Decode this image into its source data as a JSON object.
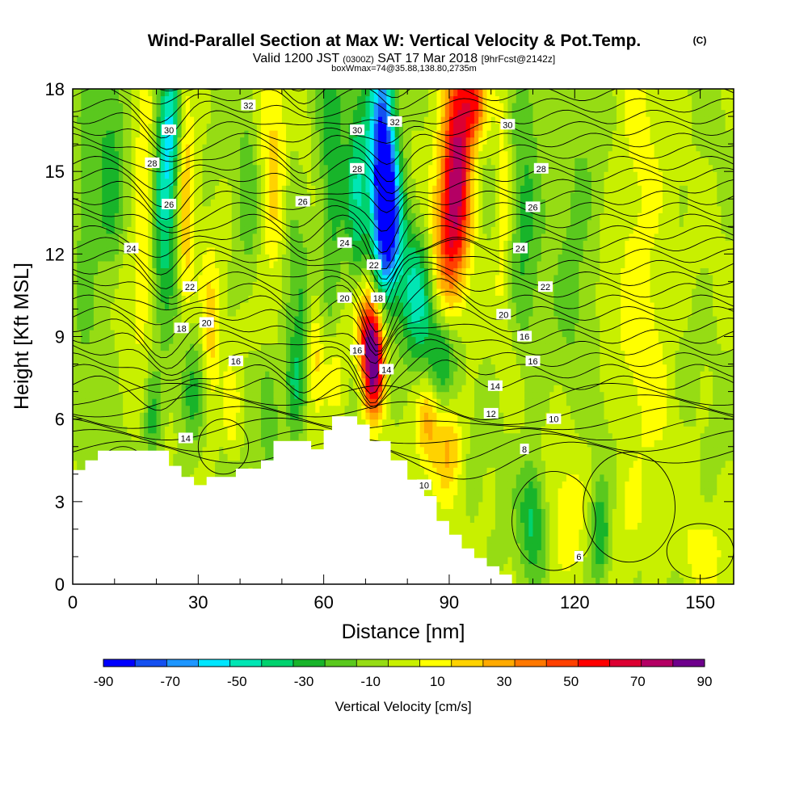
{
  "chart_data": {
    "type": "heatmap",
    "title": "Wind-Parallel Section at Max W: Vertical Velocity & Pot.Temp.",
    "title_mark": "(C)",
    "subtitle_parts": [
      "Valid 1200 JST",
      "(0300Z)",
      "SAT 17 Mar 2018",
      "[9hrFcst@2142z]"
    ],
    "subtitle2": "boxWmax=74@35.88,138.80,2735m",
    "xlabel": "Distance [nm]",
    "ylabel": "Height [Kft MSL]",
    "xlim": [
      0,
      158
    ],
    "ylim": [
      0,
      18
    ],
    "x_ticks": [
      "0",
      "30",
      "60",
      "90",
      "120",
      "150"
    ],
    "y_ticks": [
      "0",
      "3",
      "6",
      "9",
      "12",
      "15",
      "18"
    ],
    "colorbar": {
      "label": "Vertical Velocity [cm/s]",
      "tick_labels": [
        "-90",
        "-70",
        "-50",
        "-30",
        "-10",
        "10",
        "30",
        "50",
        "70",
        "90"
      ],
      "levels": [
        -90,
        -80,
        -70,
        -60,
        -50,
        -40,
        -30,
        -20,
        -10,
        0,
        10,
        20,
        30,
        40,
        50,
        60,
        70,
        80,
        90
      ],
      "colors": [
        "#0000ff",
        "#1450f0",
        "#1e96ff",
        "#00e6ff",
        "#00e6b4",
        "#00d26e",
        "#18b42a",
        "#5ac81e",
        "#96dc14",
        "#c8f000",
        "#ffff00",
        "#ffd200",
        "#ffaa00",
        "#ff7800",
        "#ff4000",
        "#ff0000",
        "#dc0032",
        "#b40064",
        "#6e008c"
      ]
    },
    "terrain": [
      [
        0,
        4.15
      ],
      [
        3,
        4.15
      ],
      [
        3,
        4.5
      ],
      [
        6,
        4.5
      ],
      [
        6,
        4.85
      ],
      [
        23,
        4.85
      ],
      [
        23,
        4.3
      ],
      [
        26,
        4.3
      ],
      [
        26,
        3.9
      ],
      [
        29,
        3.9
      ],
      [
        29,
        3.6
      ],
      [
        32,
        3.6
      ],
      [
        32,
        3.9
      ],
      [
        39,
        3.9
      ],
      [
        39,
        4.2
      ],
      [
        45,
        4.2
      ],
      [
        45,
        4.5
      ],
      [
        48,
        4.5
      ],
      [
        48,
        5.2
      ],
      [
        57,
        5.2
      ],
      [
        57,
        4.9
      ],
      [
        60,
        4.9
      ],
      [
        60,
        5.6
      ],
      [
        62,
        5.6
      ],
      [
        62,
        6.1
      ],
      [
        68,
        6.1
      ],
      [
        68,
        5.8
      ],
      [
        71,
        5.8
      ],
      [
        71,
        5.2
      ],
      [
        76,
        5.2
      ],
      [
        76,
        4.5
      ],
      [
        80,
        4.5
      ],
      [
        80,
        3.8
      ],
      [
        84,
        3.8
      ],
      [
        84,
        3.2
      ],
      [
        87,
        3.2
      ],
      [
        87,
        2.3
      ],
      [
        90,
        2.3
      ],
      [
        90,
        1.8
      ],
      [
        93,
        1.8
      ],
      [
        93,
        1.3
      ],
      [
        96,
        1.3
      ],
      [
        96,
        0.95
      ],
      [
        99,
        0.95
      ],
      [
        99,
        0.65
      ],
      [
        102,
        0.65
      ],
      [
        102,
        0.35
      ],
      [
        105,
        0.35
      ],
      [
        105,
        0.35
      ]
    ],
    "w_features": [
      {
        "x": 72,
        "y": 8.0,
        "sx": 1.7,
        "sy": 1.3,
        "w": 95
      },
      {
        "x": 70,
        "y": 9.5,
        "sx": 2.0,
        "sy": 1.2,
        "w": 50
      },
      {
        "x": 92,
        "y": 15.5,
        "sx": 2.4,
        "sy": 2.8,
        "w": 80
      },
      {
        "x": 89,
        "y": 12.5,
        "sx": 2.5,
        "sy": 2.0,
        "w": 40
      },
      {
        "x": 96,
        "y": 17.5,
        "sx": 2.0,
        "sy": 1.0,
        "w": 55
      },
      {
        "x": 74,
        "y": 15.5,
        "sx": 2.3,
        "sy": 3.0,
        "w": -88
      },
      {
        "x": 76,
        "y": 13.0,
        "sx": 2.2,
        "sy": 1.8,
        "w": -55
      },
      {
        "x": 82,
        "y": 10.5,
        "sx": 2.8,
        "sy": 1.8,
        "w": -40
      },
      {
        "x": 88,
        "y": 8.3,
        "sx": 2.8,
        "sy": 1.3,
        "w": -30
      },
      {
        "x": 85,
        "y": 6.0,
        "sx": 2.0,
        "sy": 1.2,
        "w": 32
      },
      {
        "x": 90,
        "y": 5.0,
        "sx": 2.2,
        "sy": 1.2,
        "w": 30
      },
      {
        "x": 62,
        "y": 15.0,
        "sx": 2.2,
        "sy": 4.0,
        "w": -28
      },
      {
        "x": 68,
        "y": 14.0,
        "sx": 1.8,
        "sy": 3.0,
        "w": -35
      },
      {
        "x": 23,
        "y": 16.5,
        "sx": 2.0,
        "sy": 2.0,
        "w": -50
      },
      {
        "x": 22,
        "y": 12.5,
        "sx": 2.0,
        "sy": 2.5,
        "w": -30
      },
      {
        "x": 27,
        "y": 14.0,
        "sx": 1.5,
        "sy": 4.0,
        "w": 28
      },
      {
        "x": 17,
        "y": 14.5,
        "sx": 1.5,
        "sy": 4.0,
        "w": 20
      },
      {
        "x": 9,
        "y": 15.0,
        "sx": 2.5,
        "sy": 4.0,
        "w": -22
      },
      {
        "x": 3,
        "y": 12.5,
        "sx": 2.0,
        "sy": 3.0,
        "w": -18
      },
      {
        "x": 13,
        "y": 10.5,
        "sx": 2.5,
        "sy": 1.5,
        "w": 12
      },
      {
        "x": 48,
        "y": 15.0,
        "sx": 2.5,
        "sy": 4.0,
        "w": 22
      },
      {
        "x": 42,
        "y": 14.5,
        "sx": 2.0,
        "sy": 3.0,
        "w": -15
      },
      {
        "x": 52,
        "y": 13.0,
        "sx": 1.5,
        "sy": 3.0,
        "w": -12
      },
      {
        "x": 55,
        "y": 10.5,
        "sx": 1.5,
        "sy": 1.5,
        "w": -20
      },
      {
        "x": 58,
        "y": 8.5,
        "sx": 1.5,
        "sy": 1.5,
        "w": 25
      },
      {
        "x": 53,
        "y": 7.2,
        "sx": 1.8,
        "sy": 1.5,
        "w": -28
      },
      {
        "x": 47,
        "y": 6.5,
        "sx": 1.8,
        "sy": 1.5,
        "w": -25
      },
      {
        "x": 63,
        "y": 7.5,
        "sx": 2.0,
        "sy": 1.3,
        "w": 22
      },
      {
        "x": 33,
        "y": 9.0,
        "sx": 1.7,
        "sy": 2.0,
        "w": 25
      },
      {
        "x": 28,
        "y": 7.0,
        "sx": 2.0,
        "sy": 1.5,
        "w": -28
      },
      {
        "x": 19,
        "y": 6.0,
        "sx": 1.5,
        "sy": 1.2,
        "w": -25
      },
      {
        "x": 38,
        "y": 6.3,
        "sx": 1.5,
        "sy": 1.2,
        "w": 18
      },
      {
        "x": 108,
        "y": 14.5,
        "sx": 3.0,
        "sy": 4.0,
        "w": -22
      },
      {
        "x": 103,
        "y": 14.0,
        "sx": 1.5,
        "sy": 3.0,
        "w": 22
      },
      {
        "x": 120,
        "y": 12.5,
        "sx": 3.5,
        "sy": 3.0,
        "w": -16
      },
      {
        "x": 135,
        "y": 13.5,
        "sx": 4.0,
        "sy": 4.0,
        "w": 14
      },
      {
        "x": 138,
        "y": 8.0,
        "sx": 4.0,
        "sy": 3.0,
        "w": 10
      },
      {
        "x": 110,
        "y": 2.5,
        "sx": 2.2,
        "sy": 1.5,
        "w": -32
      },
      {
        "x": 126,
        "y": 1.8,
        "sx": 1.8,
        "sy": 1.3,
        "w": -36
      },
      {
        "x": 118,
        "y": 2.5,
        "sx": 3.5,
        "sy": 1.8,
        "w": 14
      },
      {
        "x": 133,
        "y": 2.5,
        "sx": 4.0,
        "sy": 1.5,
        "w": 12
      },
      {
        "x": 150,
        "y": 1.0,
        "sx": 4.0,
        "sy": 1.0,
        "w": 14
      }
    ],
    "contour_labels": [
      {
        "text": "32",
        "x": 42,
        "y": 17.4
      },
      {
        "text": "32",
        "x": 77,
        "y": 16.8
      },
      {
        "text": "30",
        "x": 23,
        "y": 16.5
      },
      {
        "text": "30",
        "x": 68,
        "y": 16.5
      },
      {
        "text": "30",
        "x": 104,
        "y": 16.7
      },
      {
        "text": "28",
        "x": 19,
        "y": 15.3
      },
      {
        "text": "28",
        "x": 68,
        "y": 15.1
      },
      {
        "text": "28",
        "x": 112,
        "y": 15.1
      },
      {
        "text": "26",
        "x": 23,
        "y": 13.8
      },
      {
        "text": "26",
        "x": 55,
        "y": 13.9
      },
      {
        "text": "26",
        "x": 110,
        "y": 13.7
      },
      {
        "text": "24",
        "x": 14,
        "y": 12.2
      },
      {
        "text": "24",
        "x": 65,
        "y": 12.4
      },
      {
        "text": "24",
        "x": 107,
        "y": 12.2
      },
      {
        "text": "22",
        "x": 72,
        "y": 11.6
      },
      {
        "text": "22",
        "x": 28,
        "y": 10.8
      },
      {
        "text": "22",
        "x": 113,
        "y": 10.8
      },
      {
        "text": "20",
        "x": 65,
        "y": 10.4
      },
      {
        "text": "20",
        "x": 32,
        "y": 9.5
      },
      {
        "text": "20",
        "x": 103,
        "y": 9.8
      },
      {
        "text": "18",
        "x": 73,
        "y": 10.4
      },
      {
        "text": "18",
        "x": 26,
        "y": 9.3
      },
      {
        "text": "16",
        "x": 68,
        "y": 8.5
      },
      {
        "text": "16",
        "x": 108,
        "y": 9.0
      },
      {
        "text": "16",
        "x": 110,
        "y": 8.1
      },
      {
        "text": "16",
        "x": 39,
        "y": 8.1
      },
      {
        "text": "14",
        "x": 75,
        "y": 7.8
      },
      {
        "text": "14",
        "x": 101,
        "y": 7.2
      },
      {
        "text": "14",
        "x": 27,
        "y": 5.3
      },
      {
        "text": "12",
        "x": 100,
        "y": 6.2
      },
      {
        "text": "10",
        "x": 115,
        "y": 6.0
      },
      {
        "text": "10",
        "x": 84,
        "y": 3.6
      },
      {
        "text": "8",
        "x": 108,
        "y": 4.9
      },
      {
        "text": "6",
        "x": 121,
        "y": 1.0
      }
    ]
  }
}
